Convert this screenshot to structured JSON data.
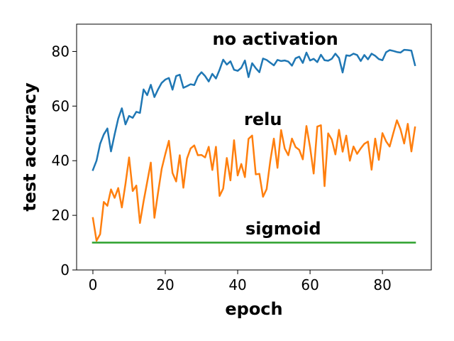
{
  "chart_data": {
    "type": "line",
    "xlabel": "epoch",
    "ylabel": "test accuracy",
    "xlim": [
      -4.5,
      93.5
    ],
    "ylim": [
      0,
      90
    ],
    "xticks": [
      0,
      20,
      40,
      60,
      80
    ],
    "yticks": [
      0,
      20,
      40,
      60,
      80
    ],
    "grid": false,
    "x": [
      0,
      1,
      2,
      3,
      4,
      5,
      6,
      7,
      8,
      9,
      10,
      11,
      12,
      13,
      14,
      15,
      16,
      17,
      18,
      19,
      20,
      21,
      22,
      23,
      24,
      25,
      26,
      27,
      28,
      29,
      30,
      31,
      32,
      33,
      34,
      35,
      36,
      37,
      38,
      39,
      40,
      41,
      42,
      43,
      44,
      45,
      46,
      47,
      48,
      49,
      50,
      51,
      52,
      53,
      54,
      55,
      56,
      57,
      58,
      59,
      60,
      61,
      62,
      63,
      64,
      65,
      66,
      67,
      68,
      69,
      70,
      71,
      72,
      73,
      74,
      75,
      76,
      77,
      78,
      79,
      80,
      81,
      82,
      83,
      84,
      85,
      86,
      87,
      88,
      89
    ],
    "series": [
      {
        "color": "#1f77b4",
        "values": [
          36.6,
          40.0,
          46.2,
          49.6,
          51.8,
          43.4,
          49.6,
          55.4,
          59.2,
          53.3,
          56.4,
          55.7,
          57.9,
          57.5,
          66.1,
          64.0,
          67.8,
          63.3,
          66.1,
          68.5,
          69.7,
          70.3,
          66.0,
          71.0,
          71.5,
          66.7,
          67.3,
          68.0,
          67.7,
          70.8,
          72.4,
          71.0,
          69.0,
          71.8,
          70.1,
          73.3,
          77.0,
          75.2,
          76.4,
          73.3,
          72.9,
          74.0,
          76.7,
          70.6,
          75.7,
          73.9,
          72.4,
          77.4,
          76.9,
          75.9,
          74.9,
          76.9,
          76.5,
          76.7,
          76.3,
          74.8,
          77.5,
          78.1,
          75.8,
          79.6,
          76.7,
          77.3,
          76.1,
          78.8,
          76.8,
          76.6,
          77.3,
          79.2,
          77.6,
          72.3,
          78.6,
          78.4,
          79.2,
          78.7,
          76.5,
          78.7,
          77.1,
          79.2,
          78.4,
          77.2,
          76.8,
          79.7,
          80.5,
          80.2,
          79.8,
          79.6,
          80.6,
          80.5,
          80.3,
          75.0
        ]
      },
      {
        "color": "#ff7f0e",
        "values": [
          19.0,
          10.7,
          13.1,
          24.9,
          23.5,
          29.5,
          26.4,
          30.0,
          22.9,
          31.5,
          41.2,
          28.9,
          30.9,
          17.2,
          25.1,
          32.2,
          39.3,
          19.1,
          28.3,
          37.0,
          42.4,
          47.3,
          35.5,
          32.4,
          42.0,
          30.1,
          40.8,
          44.5,
          45.6,
          42.0,
          42.1,
          41.2,
          45.1,
          36.6,
          45.1,
          27.1,
          29.8,
          41.0,
          32.8,
          47.5,
          34.6,
          38.8,
          34.0,
          48.0,
          49.2,
          35.0,
          35.2,
          26.8,
          29.6,
          39.8,
          48.1,
          37.4,
          51.2,
          44.5,
          42.0,
          48.1,
          45.0,
          44.0,
          40.5,
          52.7,
          45.0,
          35.3,
          52.5,
          53.0,
          30.7,
          50.0,
          47.8,
          42.3,
          51.3,
          43.3,
          49.2,
          40.0,
          45.2,
          42.5,
          44.5,
          46.2,
          47.0,
          36.7,
          48.1,
          40.3,
          50.1,
          47.1,
          45.2,
          50.1,
          54.8,
          51.5,
          46.3,
          53.5,
          43.4,
          52.2
        ]
      },
      {
        "color": "#2ca02c",
        "values": [
          10,
          10,
          10,
          10,
          10,
          10,
          10,
          10,
          10,
          10,
          10,
          10,
          10,
          10,
          10,
          10,
          10,
          10,
          10,
          10,
          10,
          10,
          10,
          10,
          10,
          10,
          10,
          10,
          10,
          10,
          10,
          10,
          10,
          10,
          10,
          10,
          10,
          10,
          10,
          10,
          10,
          10,
          10,
          10,
          10,
          10,
          10,
          10,
          10,
          10,
          10,
          10,
          10,
          10,
          10,
          10,
          10,
          10,
          10,
          10,
          10,
          10,
          10,
          10,
          10,
          10,
          10,
          10,
          10,
          10,
          10,
          10,
          10,
          10,
          10,
          10,
          10,
          10,
          10,
          10,
          10,
          10,
          10,
          10,
          10,
          10,
          10,
          10,
          10,
          10
        ]
      }
    ],
    "annotations": [
      {
        "text": "no activation",
        "x": 50.4,
        "y": 82.5
      },
      {
        "text": "relu",
        "x": 47.0,
        "y": 53.0
      },
      {
        "text": "sigmoid",
        "x": 52.6,
        "y": 13.0
      }
    ]
  }
}
